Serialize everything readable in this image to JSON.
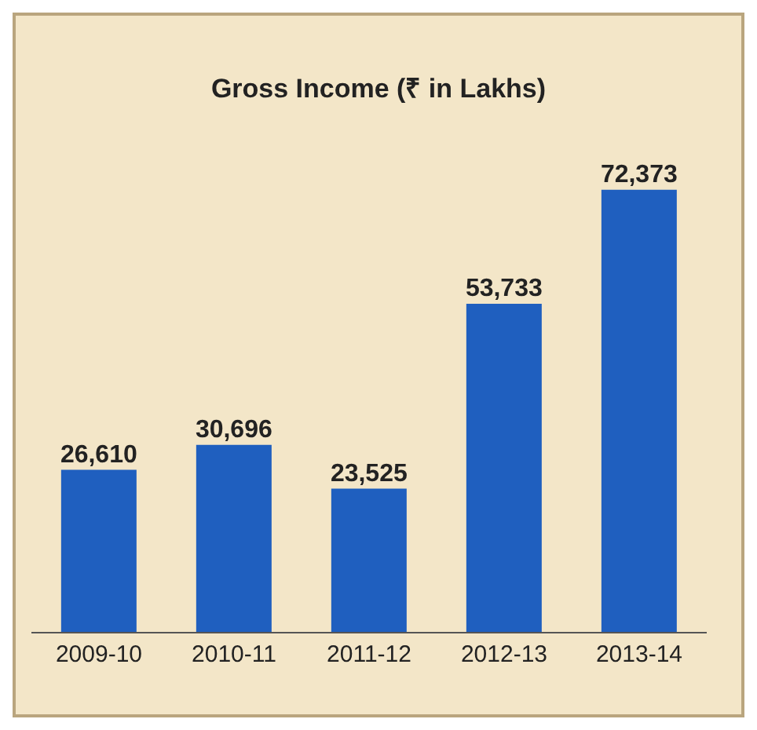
{
  "chart_data": {
    "type": "bar",
    "title": "Gross Income (₹ in Lakhs)",
    "categories": [
      "2009-10",
      "2010-11",
      "2011-12",
      "2012-13",
      "2013-14"
    ],
    "series": [
      {
        "color": "#1f5fbf",
        "values": [
          26610,
          30696,
          23525,
          53733,
          72373
        ],
        "value_labels": [
          "26,610",
          "30,696",
          "23,525",
          "53,733",
          "72,373"
        ]
      }
    ],
    "grid": false,
    "legend": false
  }
}
